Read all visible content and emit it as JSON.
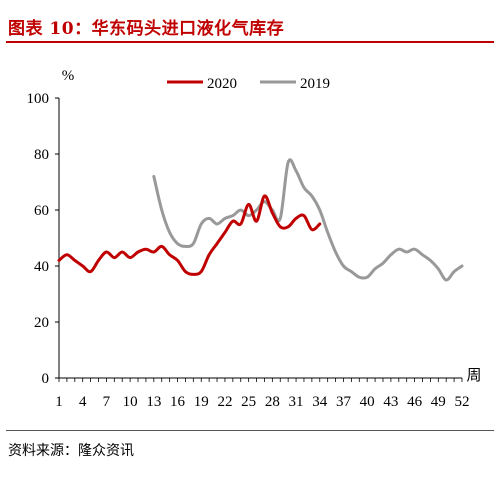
{
  "header": {
    "title": "图表 10：华东码头进口液化气库存"
  },
  "footer": {
    "source": "资料来源：隆众资讯"
  },
  "chart_data": {
    "type": "line",
    "ylabel": "%",
    "xlabel": "周",
    "ylim": [
      0,
      100
    ],
    "yticks": [
      0,
      20,
      40,
      60,
      80,
      100
    ],
    "xlim": [
      1,
      52
    ],
    "xticks": [
      1,
      4,
      7,
      10,
      13,
      16,
      19,
      22,
      25,
      28,
      31,
      34,
      37,
      40,
      43,
      46,
      49,
      52
    ],
    "legend_position": "top",
    "grid": false,
    "series": [
      {
        "name": "2020",
        "color": "#c00000",
        "x": [
          1,
          2,
          3,
          4,
          5,
          6,
          7,
          8,
          9,
          10,
          11,
          12,
          13,
          14,
          15,
          16,
          17,
          18,
          19,
          20,
          21,
          22,
          23,
          24,
          25,
          26,
          27,
          28,
          29,
          30,
          31,
          32,
          33,
          34
        ],
        "values": [
          42,
          44,
          42,
          40,
          38,
          42,
          45,
          43,
          45,
          43,
          45,
          46,
          45,
          47,
          44,
          42,
          38,
          37,
          38,
          44,
          48,
          52,
          56,
          55,
          62,
          56,
          65,
          59,
          54,
          54,
          57,
          58,
          53,
          55
        ]
      },
      {
        "name": "2019",
        "color": "#999999",
        "x": [
          13,
          14,
          15,
          16,
          17,
          18,
          19,
          20,
          21,
          22,
          23,
          24,
          25,
          26,
          27,
          28,
          29,
          30,
          31,
          32,
          33,
          34,
          35,
          36,
          37,
          38,
          39,
          40,
          41,
          42,
          43,
          44,
          45,
          46,
          47,
          48,
          49,
          50,
          51,
          52
        ],
        "values": [
          72,
          60,
          52,
          48,
          47,
          48,
          55,
          57,
          55,
          57,
          58,
          60,
          58,
          60,
          63,
          60,
          57,
          77,
          74,
          68,
          65,
          60,
          52,
          45,
          40,
          38,
          36,
          36,
          39,
          41,
          44,
          46,
          45,
          46,
          44,
          42,
          39,
          35,
          38,
          40
        ]
      }
    ]
  }
}
